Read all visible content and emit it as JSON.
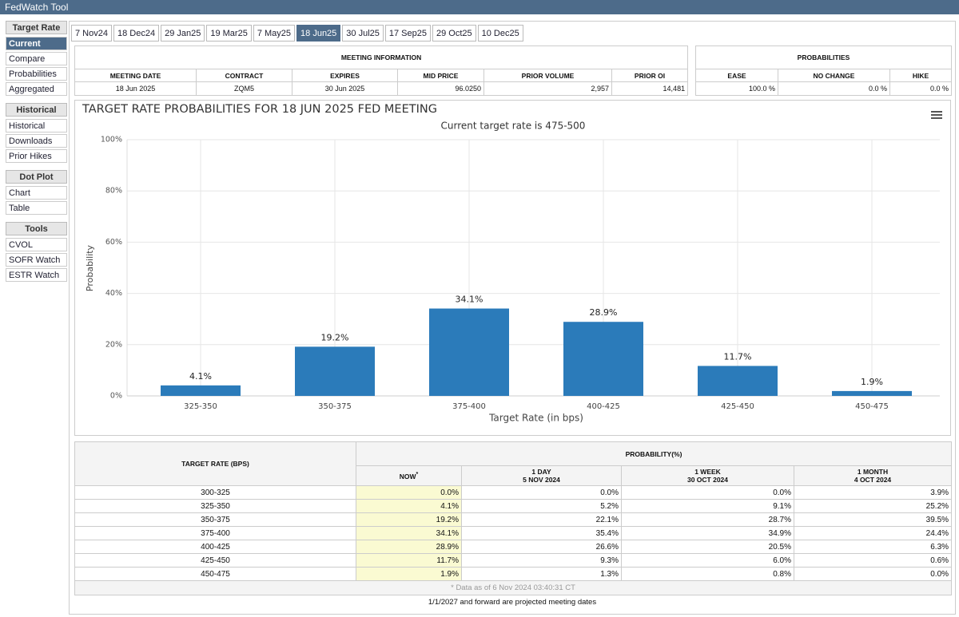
{
  "header": {
    "title": "FedWatch Tool"
  },
  "tabs": {
    "items": [
      "7 Nov24",
      "18 Dec24",
      "29 Jan25",
      "19 Mar25",
      "7 May25",
      "18 Jun25",
      "30 Jul25",
      "17 Sep25",
      "29 Oct25",
      "10 Dec25"
    ],
    "active": 5
  },
  "sidebar": [
    {
      "title": "Target Rate",
      "items": [
        "Current",
        "Compare",
        "Probabilities",
        "Aggregated"
      ]
    },
    {
      "title": "Historical",
      "items": [
        "Historical",
        "Downloads",
        "Prior Hikes"
      ]
    },
    {
      "title": "Dot Plot",
      "items": [
        "Chart",
        "Table"
      ]
    },
    {
      "title": "Tools",
      "items": [
        "CVOL",
        "SOFR Watch",
        "ESTR Watch"
      ]
    }
  ],
  "meeting_info": {
    "title": "MEETING INFORMATION",
    "headers": [
      "MEETING DATE",
      "CONTRACT",
      "EXPIRES",
      "MID PRICE",
      "PRIOR VOLUME",
      "PRIOR OI"
    ],
    "row": [
      "18 Jun 2025",
      "ZQM5",
      "30 Jun 2025",
      "96.0250",
      "2,957",
      "14,481"
    ]
  },
  "probabilities": {
    "title": "PROBABILITIES",
    "headers": [
      "EASE",
      "NO CHANGE",
      "HIKE"
    ],
    "row": [
      "100.0 %",
      "0.0 %",
      "0.0 %"
    ]
  },
  "chart_data": {
    "type": "bar",
    "title": "TARGET RATE PROBABILITIES FOR 18 JUN 2025 FED MEETING",
    "subtitle": "Current target rate is 475-500",
    "x_label": "Target Rate (in bps)",
    "y_label": "Probability",
    "categories": [
      "325-350",
      "350-375",
      "375-400",
      "400-425",
      "425-450",
      "450-475"
    ],
    "values": [
      4.1,
      19.2,
      34.1,
      28.9,
      11.7,
      1.9
    ],
    "value_labels": [
      "4.1%",
      "19.2%",
      "34.1%",
      "28.9%",
      "11.7%",
      "1.9%"
    ],
    "color": "#2b7bba",
    "ylim": [
      0,
      100
    ],
    "yticks": [
      {
        "value": 0,
        "label": "0%"
      },
      {
        "value": 20,
        "label": "20%"
      },
      {
        "value": 40,
        "label": "40%"
      },
      {
        "value": 60,
        "label": "60%"
      },
      {
        "value": 80,
        "label": "80%"
      },
      {
        "value": 100,
        "label": "100%"
      }
    ],
    "grid": true
  },
  "table": {
    "rate_header": "TARGET RATE (BPS)",
    "prob_header": "PROBABILITY(%)",
    "columns": [
      {
        "label": "NOW",
        "note": "*"
      },
      {
        "label": "1 DAY",
        "date": "5 NOV 2024"
      },
      {
        "label": "1 WEEK",
        "date": "30 OCT 2024"
      },
      {
        "label": "1 MONTH",
        "date": "4 OCT 2024"
      }
    ],
    "rows": [
      [
        "300-325",
        "0.0%",
        "0.0%",
        "0.0%",
        "3.9%"
      ],
      [
        "325-350",
        "4.1%",
        "5.2%",
        "9.1%",
        "25.2%"
      ],
      [
        "350-375",
        "19.2%",
        "22.1%",
        "28.7%",
        "39.5%"
      ],
      [
        "375-400",
        "34.1%",
        "35.4%",
        "34.9%",
        "24.4%"
      ],
      [
        "400-425",
        "28.9%",
        "26.6%",
        "20.5%",
        "6.3%"
      ],
      [
        "425-450",
        "11.7%",
        "9.3%",
        "6.0%",
        "0.6%"
      ],
      [
        "450-475",
        "1.9%",
        "1.3%",
        "0.8%",
        "0.0%"
      ]
    ],
    "footnote": "* Data as of 6 Nov 2024 03:40:31 CT"
  },
  "footer": "1/1/2027 and forward are projected meeting dates"
}
